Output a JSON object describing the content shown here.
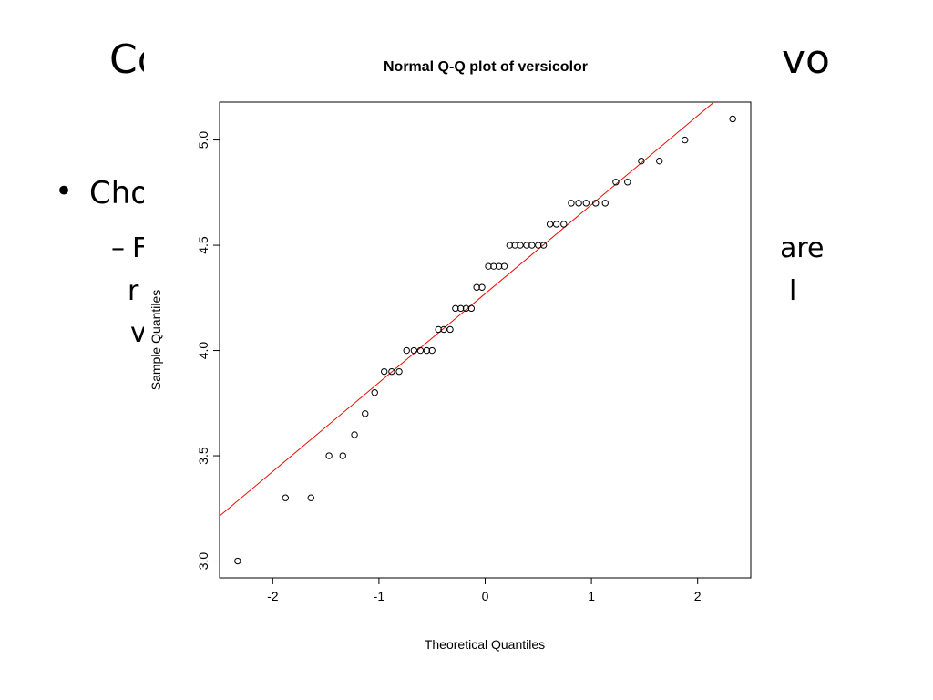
{
  "slide": {
    "title_left_fragment": "Co",
    "title_right_fragment": "vo",
    "bullet_symbol": "•",
    "bullet_text_fragment": "Cho",
    "sub_dash": "–",
    "sub_line1_fragment": "F",
    "sub_line2_fragment": "r",
    "sub_line3_fragment": "v",
    "right_line1_fragment": "are",
    "right_line2_fragment": "l"
  },
  "chart_data": {
    "type": "scatter",
    "title": "Normal Q-Q plot of versicolor",
    "xlabel": "Theoretical Quantiles",
    "ylabel": "Sample Quantiles",
    "xlim": [
      -2.5,
      2.5
    ],
    "ylim": [
      2.92,
      5.18
    ],
    "x_ticks": [
      "-2",
      "-1",
      "0",
      "1",
      "2"
    ],
    "x_tick_values": [
      -2,
      -1,
      0,
      1,
      2
    ],
    "y_ticks": [
      "3.0",
      "3.5",
      "4.0",
      "4.5",
      "5.0"
    ],
    "y_tick_values": [
      3.0,
      3.5,
      4.0,
      4.5,
      5.0
    ],
    "series": [
      {
        "marker": "open-circle",
        "color": "#000000",
        "points": [
          [
            -2.33,
            3.0
          ],
          [
            -1.88,
            3.3
          ],
          [
            -1.64,
            3.3
          ],
          [
            -1.47,
            3.5
          ],
          [
            -1.34,
            3.5
          ],
          [
            -1.23,
            3.6
          ],
          [
            -1.13,
            3.7
          ],
          [
            -1.04,
            3.8
          ],
          [
            -0.95,
            3.9
          ],
          [
            -0.88,
            3.9
          ],
          [
            -0.81,
            3.9
          ],
          [
            -0.74,
            4.0
          ],
          [
            -0.67,
            4.0
          ],
          [
            -0.61,
            4.0
          ],
          [
            -0.55,
            4.0
          ],
          [
            -0.5,
            4.0
          ],
          [
            -0.44,
            4.1
          ],
          [
            -0.39,
            4.1
          ],
          [
            -0.33,
            4.1
          ],
          [
            -0.28,
            4.2
          ],
          [
            -0.23,
            4.2
          ],
          [
            -0.18,
            4.2
          ],
          [
            -0.13,
            4.2
          ],
          [
            -0.08,
            4.3
          ],
          [
            -0.03,
            4.3
          ],
          [
            0.03,
            4.4
          ],
          [
            0.08,
            4.4
          ],
          [
            0.13,
            4.4
          ],
          [
            0.18,
            4.4
          ],
          [
            0.23,
            4.5
          ],
          [
            0.28,
            4.5
          ],
          [
            0.33,
            4.5
          ],
          [
            0.39,
            4.5
          ],
          [
            0.44,
            4.5
          ],
          [
            0.5,
            4.5
          ],
          [
            0.55,
            4.5
          ],
          [
            0.61,
            4.6
          ],
          [
            0.67,
            4.6
          ],
          [
            0.74,
            4.6
          ],
          [
            0.81,
            4.7
          ],
          [
            0.88,
            4.7
          ],
          [
            0.95,
            4.7
          ],
          [
            1.04,
            4.7
          ],
          [
            1.13,
            4.7
          ],
          [
            1.23,
            4.8
          ],
          [
            1.34,
            4.8
          ],
          [
            1.47,
            4.9
          ],
          [
            1.64,
            4.9
          ],
          [
            1.88,
            5.0
          ],
          [
            2.33,
            5.1
          ]
        ]
      }
    ],
    "reference_line": {
      "color": "#ff0000",
      "intercept": 4.27,
      "slope": 0.4225
    },
    "grid": false,
    "legend": "none"
  }
}
